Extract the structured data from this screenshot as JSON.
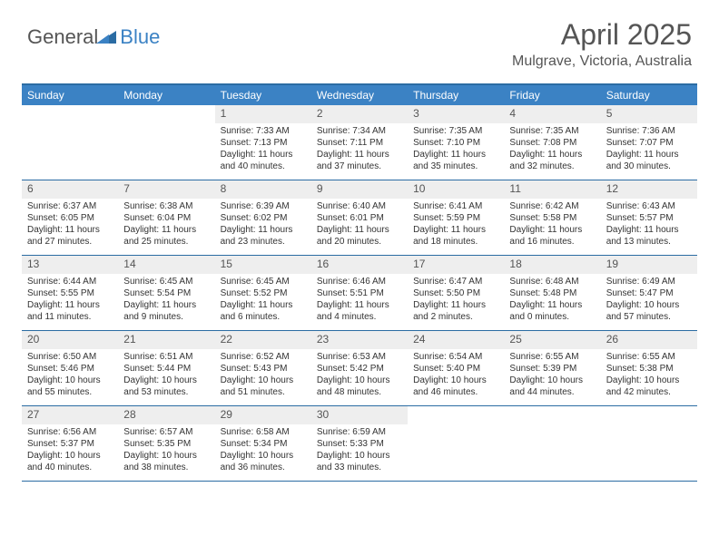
{
  "logo": {
    "general": "General",
    "blue": "Blue"
  },
  "title": "April 2025",
  "location": "Mulgrave, Victoria, Australia",
  "header_bg": "#3b82c4",
  "border_color": "#2b6ca3",
  "daynum_bg": "#eeeeee",
  "weekdays": [
    "Sunday",
    "Monday",
    "Tuesday",
    "Wednesday",
    "Thursday",
    "Friday",
    "Saturday"
  ],
  "weeks": [
    [
      {
        "n": "",
        "sr": "",
        "ss": "",
        "dl": ""
      },
      {
        "n": "",
        "sr": "",
        "ss": "",
        "dl": ""
      },
      {
        "n": "1",
        "sr": "Sunrise: 7:33 AM",
        "ss": "Sunset: 7:13 PM",
        "dl": "Daylight: 11 hours and 40 minutes."
      },
      {
        "n": "2",
        "sr": "Sunrise: 7:34 AM",
        "ss": "Sunset: 7:11 PM",
        "dl": "Daylight: 11 hours and 37 minutes."
      },
      {
        "n": "3",
        "sr": "Sunrise: 7:35 AM",
        "ss": "Sunset: 7:10 PM",
        "dl": "Daylight: 11 hours and 35 minutes."
      },
      {
        "n": "4",
        "sr": "Sunrise: 7:35 AM",
        "ss": "Sunset: 7:08 PM",
        "dl": "Daylight: 11 hours and 32 minutes."
      },
      {
        "n": "5",
        "sr": "Sunrise: 7:36 AM",
        "ss": "Sunset: 7:07 PM",
        "dl": "Daylight: 11 hours and 30 minutes."
      }
    ],
    [
      {
        "n": "6",
        "sr": "Sunrise: 6:37 AM",
        "ss": "Sunset: 6:05 PM",
        "dl": "Daylight: 11 hours and 27 minutes."
      },
      {
        "n": "7",
        "sr": "Sunrise: 6:38 AM",
        "ss": "Sunset: 6:04 PM",
        "dl": "Daylight: 11 hours and 25 minutes."
      },
      {
        "n": "8",
        "sr": "Sunrise: 6:39 AM",
        "ss": "Sunset: 6:02 PM",
        "dl": "Daylight: 11 hours and 23 minutes."
      },
      {
        "n": "9",
        "sr": "Sunrise: 6:40 AM",
        "ss": "Sunset: 6:01 PM",
        "dl": "Daylight: 11 hours and 20 minutes."
      },
      {
        "n": "10",
        "sr": "Sunrise: 6:41 AM",
        "ss": "Sunset: 5:59 PM",
        "dl": "Daylight: 11 hours and 18 minutes."
      },
      {
        "n": "11",
        "sr": "Sunrise: 6:42 AM",
        "ss": "Sunset: 5:58 PM",
        "dl": "Daylight: 11 hours and 16 minutes."
      },
      {
        "n": "12",
        "sr": "Sunrise: 6:43 AM",
        "ss": "Sunset: 5:57 PM",
        "dl": "Daylight: 11 hours and 13 minutes."
      }
    ],
    [
      {
        "n": "13",
        "sr": "Sunrise: 6:44 AM",
        "ss": "Sunset: 5:55 PM",
        "dl": "Daylight: 11 hours and 11 minutes."
      },
      {
        "n": "14",
        "sr": "Sunrise: 6:45 AM",
        "ss": "Sunset: 5:54 PM",
        "dl": "Daylight: 11 hours and 9 minutes."
      },
      {
        "n": "15",
        "sr": "Sunrise: 6:45 AM",
        "ss": "Sunset: 5:52 PM",
        "dl": "Daylight: 11 hours and 6 minutes."
      },
      {
        "n": "16",
        "sr": "Sunrise: 6:46 AM",
        "ss": "Sunset: 5:51 PM",
        "dl": "Daylight: 11 hours and 4 minutes."
      },
      {
        "n": "17",
        "sr": "Sunrise: 6:47 AM",
        "ss": "Sunset: 5:50 PM",
        "dl": "Daylight: 11 hours and 2 minutes."
      },
      {
        "n": "18",
        "sr": "Sunrise: 6:48 AM",
        "ss": "Sunset: 5:48 PM",
        "dl": "Daylight: 11 hours and 0 minutes."
      },
      {
        "n": "19",
        "sr": "Sunrise: 6:49 AM",
        "ss": "Sunset: 5:47 PM",
        "dl": "Daylight: 10 hours and 57 minutes."
      }
    ],
    [
      {
        "n": "20",
        "sr": "Sunrise: 6:50 AM",
        "ss": "Sunset: 5:46 PM",
        "dl": "Daylight: 10 hours and 55 minutes."
      },
      {
        "n": "21",
        "sr": "Sunrise: 6:51 AM",
        "ss": "Sunset: 5:44 PM",
        "dl": "Daylight: 10 hours and 53 minutes."
      },
      {
        "n": "22",
        "sr": "Sunrise: 6:52 AM",
        "ss": "Sunset: 5:43 PM",
        "dl": "Daylight: 10 hours and 51 minutes."
      },
      {
        "n": "23",
        "sr": "Sunrise: 6:53 AM",
        "ss": "Sunset: 5:42 PM",
        "dl": "Daylight: 10 hours and 48 minutes."
      },
      {
        "n": "24",
        "sr": "Sunrise: 6:54 AM",
        "ss": "Sunset: 5:40 PM",
        "dl": "Daylight: 10 hours and 46 minutes."
      },
      {
        "n": "25",
        "sr": "Sunrise: 6:55 AM",
        "ss": "Sunset: 5:39 PM",
        "dl": "Daylight: 10 hours and 44 minutes."
      },
      {
        "n": "26",
        "sr": "Sunrise: 6:55 AM",
        "ss": "Sunset: 5:38 PM",
        "dl": "Daylight: 10 hours and 42 minutes."
      }
    ],
    [
      {
        "n": "27",
        "sr": "Sunrise: 6:56 AM",
        "ss": "Sunset: 5:37 PM",
        "dl": "Daylight: 10 hours and 40 minutes."
      },
      {
        "n": "28",
        "sr": "Sunrise: 6:57 AM",
        "ss": "Sunset: 5:35 PM",
        "dl": "Daylight: 10 hours and 38 minutes."
      },
      {
        "n": "29",
        "sr": "Sunrise: 6:58 AM",
        "ss": "Sunset: 5:34 PM",
        "dl": "Daylight: 10 hours and 36 minutes."
      },
      {
        "n": "30",
        "sr": "Sunrise: 6:59 AM",
        "ss": "Sunset: 5:33 PM",
        "dl": "Daylight: 10 hours and 33 minutes."
      },
      {
        "n": "",
        "sr": "",
        "ss": "",
        "dl": ""
      },
      {
        "n": "",
        "sr": "",
        "ss": "",
        "dl": ""
      },
      {
        "n": "",
        "sr": "",
        "ss": "",
        "dl": ""
      }
    ]
  ]
}
